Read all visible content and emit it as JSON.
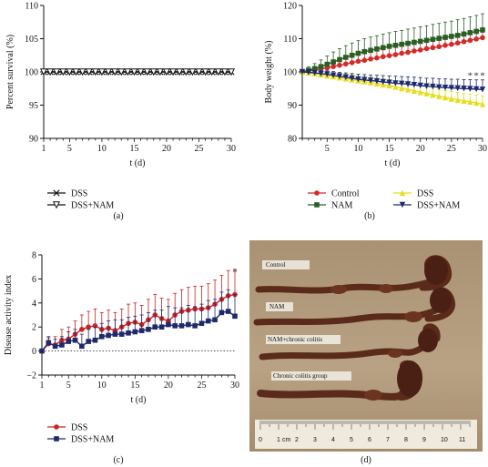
{
  "panels": {
    "a": {
      "label": "(a)"
    },
    "b": {
      "label": "(b)"
    },
    "c": {
      "label": "(c)"
    },
    "d": {
      "label": "(d)"
    }
  },
  "photo": {
    "labels": [
      "Control",
      "NAM",
      "NAM+chronic colitis",
      "Chronic colitis group"
    ],
    "ruler_numbers": [
      "0",
      "1",
      "cm",
      "2",
      "3",
      "4",
      "5",
      "6",
      "7",
      "8",
      "9",
      "10",
      "11"
    ],
    "colors": {
      "background": "#b59e80",
      "tissue": "#5a2a1a",
      "label_bg": "#f3efe6"
    }
  },
  "chart_data": [
    {
      "id": "a",
      "type": "line",
      "title": "",
      "xlabel": "t (d)",
      "ylabel": "Percent survival (%)",
      "xlim": [
        1,
        30
      ],
      "ylim": [
        90,
        110
      ],
      "xticks": [
        1,
        5,
        10,
        15,
        20,
        25,
        30
      ],
      "yticks": [
        90,
        95,
        100,
        105,
        110
      ],
      "x": [
        1,
        2,
        3,
        4,
        5,
        6,
        7,
        8,
        9,
        10,
        11,
        12,
        13,
        14,
        15,
        16,
        17,
        18,
        19,
        20,
        21,
        22,
        23,
        24,
        25,
        26,
        27,
        28,
        29,
        30
      ],
      "series": [
        {
          "name": "DSS",
          "marker": "x",
          "color": "#111111",
          "values": [
            100,
            100,
            100,
            100,
            100,
            100,
            100,
            100,
            100,
            100,
            100,
            100,
            100,
            100,
            100,
            100,
            100,
            100,
            100,
            100,
            100,
            100,
            100,
            100,
            100,
            100,
            100,
            100,
            100,
            100
          ]
        },
        {
          "name": "DSS+NAM",
          "marker": "triangle-down-open",
          "color": "#111111",
          "values": [
            100,
            100,
            100,
            100,
            100,
            100,
            100,
            100,
            100,
            100,
            100,
            100,
            100,
            100,
            100,
            100,
            100,
            100,
            100,
            100,
            100,
            100,
            100,
            100,
            100,
            100,
            100,
            100,
            100,
            100
          ]
        }
      ],
      "legend": "bottom"
    },
    {
      "id": "b",
      "type": "line",
      "title": "",
      "xlabel": "t (d)",
      "ylabel": "Body weight (%)",
      "xlim": [
        1,
        30
      ],
      "ylim": [
        80,
        120
      ],
      "xticks": [
        5,
        10,
        15,
        20,
        25,
        30
      ],
      "yticks": [
        80,
        90,
        100,
        110,
        120
      ],
      "x": [
        1,
        2,
        3,
        4,
        5,
        6,
        7,
        8,
        9,
        10,
        11,
        12,
        13,
        14,
        15,
        16,
        17,
        18,
        19,
        20,
        21,
        22,
        23,
        24,
        25,
        26,
        27,
        28,
        29,
        30
      ],
      "series": [
        {
          "name": "Control",
          "marker": "circle",
          "color": "#d42a2a",
          "values": [
            100,
            100.3,
            100.6,
            100.9,
            101.2,
            101.6,
            102,
            102.4,
            102.8,
            103.2,
            103.5,
            103.9,
            104.2,
            104.6,
            104.9,
            105.2,
            105.6,
            105.9,
            106.3,
            106.6,
            107,
            107.3,
            107.6,
            108,
            108.3,
            108.7,
            109.1,
            109.5,
            109.9,
            110.3
          ],
          "err": [
            0.3,
            0.8,
            1,
            1.2,
            1.4,
            1.6,
            1.7,
            1.8,
            1.9,
            2,
            2,
            2.1,
            2.1,
            2.2,
            2.2,
            2.3,
            2.3,
            2.4,
            2.4,
            2.5,
            2.5,
            2.6,
            2.6,
            2.7,
            2.7,
            2.8,
            2.8,
            2.9,
            2.9,
            3
          ]
        },
        {
          "name": "NAM",
          "marker": "square",
          "color": "#2a5e24",
          "values": [
            100,
            100.5,
            101,
            101.6,
            102.3,
            103,
            103.7,
            104.4,
            105,
            105.6,
            106.1,
            106.5,
            106.9,
            107.3,
            107.7,
            108,
            108.3,
            108.6,
            108.9,
            109.2,
            109.5,
            109.8,
            110.1,
            110.4,
            110.7,
            111,
            111.4,
            111.8,
            112.2,
            112.6
          ],
          "err": [
            0.5,
            1,
            1.5,
            2,
            2.5,
            3,
            3.3,
            3.5,
            3.7,
            3.8,
            3.9,
            4,
            4,
            4.1,
            4.1,
            4.2,
            4.2,
            4.3,
            4.3,
            4.4,
            4.4,
            4.5,
            4.5,
            4.6,
            4.6,
            4.7,
            4.7,
            4.8,
            4.8,
            4.9
          ]
        },
        {
          "name": "DSS",
          "marker": "triangle-up",
          "color": "#e6dd1e",
          "values": [
            100,
            99.8,
            99.5,
            99.2,
            98.9,
            98.6,
            98.3,
            98,
            97.7,
            97.4,
            97.1,
            96.8,
            96.5,
            96.2,
            95.9,
            95.5,
            95.1,
            94.7,
            94.3,
            93.9,
            93.5,
            93.1,
            92.7,
            92.3,
            91.9,
            91.6,
            91.3,
            91,
            90.7,
            90.3
          ],
          "err": [
            0.3,
            0.6,
            0.8,
            1,
            1.1,
            1.2,
            1.3,
            1.4,
            1.5,
            1.5,
            1.6,
            1.6,
            1.7,
            1.7,
            1.8,
            1.8,
            1.8,
            1.9,
            1.9,
            2,
            2,
            2,
            2.1,
            2.1,
            2.2,
            2.2,
            2.2,
            2.3,
            2.3,
            2.4
          ]
        },
        {
          "name": "DSS+NAM",
          "marker": "triangle-down",
          "color": "#1e2a6e",
          "values": [
            100,
            99.9,
            99.7,
            99.5,
            99.3,
            99,
            98.7,
            98.4,
            98.1,
            97.8,
            97.6,
            97.4,
            97.2,
            97,
            96.8,
            96.6,
            96.5,
            96.3,
            96.1,
            95.9,
            95.7,
            95.6,
            95.4,
            95.3,
            95.2,
            95.1,
            95,
            94.9,
            94.8,
            94.7
          ],
          "err": [
            0.3,
            0.5,
            0.7,
            0.9,
            1,
            1.1,
            1.2,
            1.3,
            1.4,
            1.5,
            1.6,
            1.7,
            1.8,
            1.9,
            2,
            2.1,
            2.1,
            2.2,
            2.3,
            2.4,
            2.4,
            2.5,
            2.5,
            2.6,
            2.6,
            2.7,
            2.7,
            2.8,
            2.8,
            2.9
          ]
        }
      ],
      "annotations": [
        {
          "x": 28,
          "y": 98,
          "text": "*"
        },
        {
          "x": 29,
          "y": 98,
          "text": "*"
        },
        {
          "x": 30,
          "y": 98,
          "text": "*"
        }
      ],
      "legend": "bottom"
    },
    {
      "id": "c",
      "type": "line",
      "title": "",
      "xlabel": "t (d)",
      "ylabel": "Disease activity index",
      "xlim": [
        1,
        30
      ],
      "ylim": [
        -2,
        8
      ],
      "xticks": [
        1,
        5,
        10,
        15,
        20,
        25,
        30
      ],
      "yticks": [
        -2,
        0,
        2,
        4,
        6,
        8
      ],
      "x": [
        1,
        2,
        3,
        4,
        5,
        6,
        7,
        8,
        9,
        10,
        11,
        12,
        13,
        14,
        15,
        16,
        17,
        18,
        19,
        20,
        21,
        22,
        23,
        24,
        25,
        26,
        27,
        28,
        29,
        30
      ],
      "series": [
        {
          "name": "DSS",
          "marker": "circle",
          "color": "#cc2222",
          "values": [
            0,
            0.6,
            0.5,
            0.9,
            1,
            1.4,
            1.8,
            2,
            2.1,
            1.8,
            1.9,
            1.7,
            2,
            2.3,
            2.4,
            2.2,
            2.6,
            3,
            2.7,
            2.5,
            3,
            3.3,
            3.4,
            3.5,
            3.5,
            3.6,
            3.9,
            4.3,
            4.6,
            4.7
          ],
          "err": [
            0,
            0.5,
            0.7,
            0.9,
            1,
            1.1,
            1.2,
            1.3,
            1.4,
            1.4,
            1.5,
            1.5,
            1.5,
            1.6,
            1.6,
            1.6,
            1.7,
            1.7,
            1.7,
            1.8,
            1.8,
            1.8,
            1.9,
            1.9,
            1.9,
            2,
            2,
            2,
            2.1,
            2.1
          ]
        },
        {
          "name": "DSS+NAM",
          "marker": "square",
          "color": "#1f2a6a",
          "values": [
            0,
            0.7,
            0.4,
            0.5,
            0.8,
            0.9,
            0.4,
            0.8,
            0.9,
            1.2,
            1.3,
            1.4,
            1.4,
            1.5,
            1.6,
            1.7,
            1.8,
            2,
            2,
            2.2,
            2.1,
            2.1,
            2.2,
            2.1,
            2.3,
            2.5,
            2.6,
            3.2,
            3.3,
            2.9
          ],
          "err": [
            0,
            0.5,
            0.6,
            0.7,
            0.8,
            0.9,
            1,
            1,
            1.1,
            1.1,
            1.2,
            1.2,
            1.2,
            1.3,
            1.3,
            1.3,
            1.4,
            1.4,
            1.4,
            1.5,
            1.5,
            1.5,
            1.6,
            1.6,
            1.6,
            1.7,
            1.7,
            1.7,
            1.8,
            1.8
          ]
        }
      ],
      "annotations": [
        {
          "x": 30,
          "y": 6.3,
          "text": "*"
        }
      ],
      "legend": "bottom"
    }
  ]
}
